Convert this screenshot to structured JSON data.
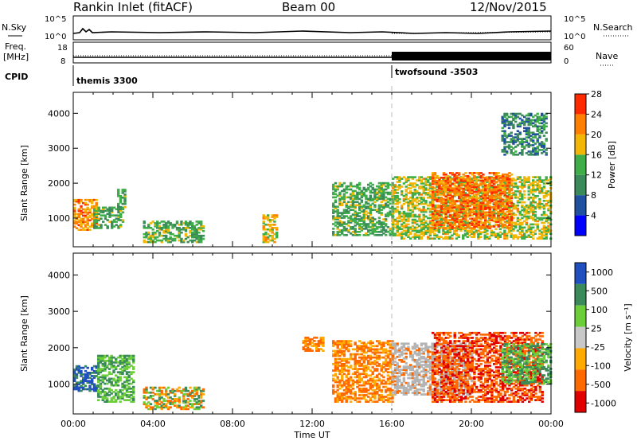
{
  "header": {
    "station": "Rankin Inlet (fitACF)",
    "beam": "Beam 00",
    "date": "12/Nov/2015"
  },
  "strip_labels": {
    "nsky": "N.Sky",
    "nsearch": "N.Search",
    "freq_line1": "Freq.",
    "freq_line2": "[MHz]",
    "nave": "Nave",
    "cpid": "CPID",
    "noise_ticks_left": [
      "10^5",
      "10^0"
    ],
    "noise_ticks_right": [
      "10^5",
      "10^0"
    ],
    "freq_ticks": [
      "18",
      "8"
    ],
    "nave_ticks": [
      "60",
      "0"
    ]
  },
  "cpid_segments": [
    {
      "label": "themis 3300",
      "start_hour": 0
    },
    {
      "label": "twofsound -3503",
      "start_hour": 16
    }
  ],
  "colors": {
    "power": [
      "#0000ff",
      "#2050a0",
      "#3a8a5a",
      "#3fae49",
      "#f2b705",
      "#ff7f00",
      "#ff2a00"
    ],
    "velocity": [
      "#e00000",
      "#ff6a00",
      "#ffaa00",
      "#c8c8c8",
      "#6ccf3a",
      "#3a8a5a",
      "#2050c0"
    ],
    "ground_scatter": "#b4b4b4",
    "dashed_line": "#bbbbbb"
  },
  "chart_data": [
    {
      "type": "heatmap",
      "title": "",
      "xlabel": "",
      "ylabel": "Slant Range [km]",
      "xlim": [
        "00:00",
        "24:00"
      ],
      "ylim": [
        180,
        4600
      ],
      "yticks": [
        "1000",
        "2000",
        "3000",
        "4000"
      ],
      "colorbar_label": "Power [dB]",
      "colorbar_ticks": [
        "4",
        "8",
        "12",
        "16",
        "20",
        "24",
        "28"
      ],
      "colorbar_range": [
        0,
        30
      ],
      "regions": [
        {
          "t": [
            0.0,
            1.2
          ],
          "r": [
            650,
            1550
          ],
          "level": 24
        },
        {
          "t": [
            1.0,
            2.5
          ],
          "r": [
            700,
            1300
          ],
          "level": 14
        },
        {
          "t": [
            2.2,
            2.6
          ],
          "r": [
            1300,
            1800
          ],
          "level": 14
        },
        {
          "t": [
            3.5,
            6.5
          ],
          "r": [
            300,
            900
          ],
          "level": 14
        },
        {
          "t": [
            9.5,
            10.2
          ],
          "r": [
            300,
            1100
          ],
          "level": 20
        },
        {
          "t": [
            13.0,
            16.0
          ],
          "r": [
            500,
            2000
          ],
          "level": 14
        },
        {
          "t": [
            16.0,
            24.0
          ],
          "r": [
            400,
            2200
          ],
          "level": 18
        },
        {
          "t": [
            18.0,
            22.0
          ],
          "r": [
            700,
            2300
          ],
          "level": 26
        },
        {
          "t": [
            21.5,
            23.8
          ],
          "r": [
            2800,
            4000
          ],
          "level": 10
        }
      ]
    },
    {
      "type": "heatmap",
      "title": "",
      "xlabel": "Time UT",
      "ylabel": "Slant Range [km]",
      "xlim": [
        "00:00",
        "24:00"
      ],
      "ylim": [
        180,
        4600
      ],
      "xticks": [
        "00:00",
        "04:00",
        "08:00",
        "12:00",
        "16:00",
        "20:00",
        "00:00"
      ],
      "yticks": [
        "1000",
        "2000",
        "3000",
        "4000"
      ],
      "colorbar_label": "Velocity [m s⁻¹]",
      "colorbar_ticks": [
        "1000",
        "500",
        "100",
        "25",
        "-25",
        "-100",
        "-500",
        "-1000"
      ],
      "regions": [
        {
          "t": [
            0.0,
            1.2
          ],
          "r": [
            800,
            1500
          ],
          "level": "toward-high"
        },
        {
          "t": [
            1.2,
            3.0
          ],
          "r": [
            500,
            1800
          ],
          "level": "toward-low"
        },
        {
          "t": [
            3.5,
            6.5
          ],
          "r": [
            300,
            900
          ],
          "level": "mixed"
        },
        {
          "t": [
            11.5,
            12.5
          ],
          "r": [
            1900,
            2300
          ],
          "level": "away-mid"
        },
        {
          "t": [
            13.0,
            16.0
          ],
          "r": [
            500,
            2200
          ],
          "level": "away-mid"
        },
        {
          "t": [
            16.0,
            20.0
          ],
          "r": [
            700,
            2100
          ],
          "level": "ground-scatter"
        },
        {
          "t": [
            18.0,
            23.5
          ],
          "r": [
            500,
            2400
          ],
          "level": "away-high"
        },
        {
          "t": [
            21.5,
            24.0
          ],
          "r": [
            1000,
            2100
          ],
          "level": "toward-low"
        }
      ]
    }
  ]
}
